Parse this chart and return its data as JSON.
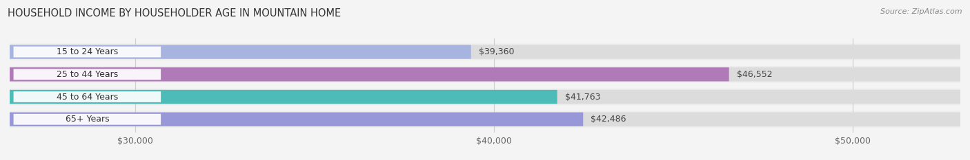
{
  "title": "HOUSEHOLD INCOME BY HOUSEHOLDER AGE IN MOUNTAIN HOME",
  "source": "Source: ZipAtlas.com",
  "categories": [
    "15 to 24 Years",
    "25 to 44 Years",
    "45 to 64 Years",
    "65+ Years"
  ],
  "values": [
    39360,
    46552,
    41763,
    42486
  ],
  "value_labels": [
    "$39,360",
    "$46,552",
    "$41,763",
    "$42,486"
  ],
  "bar_colors": [
    "#a8b4e0",
    "#b07ab8",
    "#4dbcb8",
    "#9898d8"
  ],
  "xlim_min": 26500,
  "xlim_max": 53000,
  "xticks": [
    30000,
    40000,
    50000
  ],
  "xtick_labels": [
    "$30,000",
    "$40,000",
    "$50,000"
  ],
  "background_color": "#f4f4f4",
  "bar_background_color": "#e4e4e4",
  "bar_row_bg": "#ffffff",
  "title_fontsize": 10.5,
  "source_fontsize": 8,
  "label_fontsize": 9,
  "tick_fontsize": 9,
  "value_inside_threshold": 49000
}
